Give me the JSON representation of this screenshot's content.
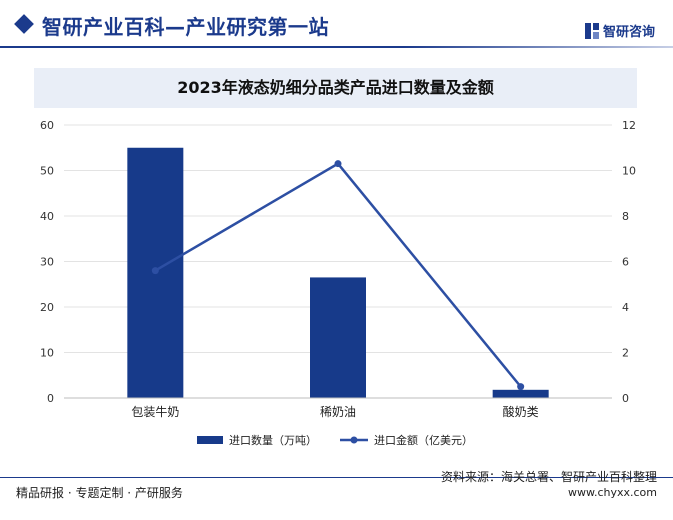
{
  "header": {
    "title": "智研产业百科—产业研究第一站",
    "brand_name": "智研咨询",
    "brand_icon": "zhiyan-logo-icon",
    "accent_color": "#1b3a8c"
  },
  "footer": {
    "left_text": "精品研报 · 专题定制 · 产研服务",
    "source_text": "资料来源：海关总署、智研产业百科整理",
    "url_text": "www.chyxx.com"
  },
  "chart_data": {
    "type": "bar",
    "title": "2023年液态奶细分品类产品进口数量及金额",
    "categories": [
      "包装牛奶",
      "稀奶油",
      "酸奶类"
    ],
    "series": [
      {
        "name": "进口数量（万吨）",
        "type": "bar",
        "axis": "left",
        "color": "#173a8a",
        "values": [
          55,
          26.5,
          1.8
        ]
      },
      {
        "name": "进口金额（亿美元）",
        "type": "line",
        "axis": "right",
        "color": "#2d4fa3",
        "values": [
          5.6,
          10.3,
          0.5
        ]
      }
    ],
    "y_left": {
      "min": 0,
      "max": 60,
      "ticks": [
        0,
        10,
        20,
        30,
        40,
        50,
        60
      ]
    },
    "y_right": {
      "min": 0,
      "max": 12,
      "ticks": [
        0,
        2,
        4,
        6,
        8,
        10,
        12
      ]
    },
    "grid": true,
    "legend_position": "bottom"
  }
}
